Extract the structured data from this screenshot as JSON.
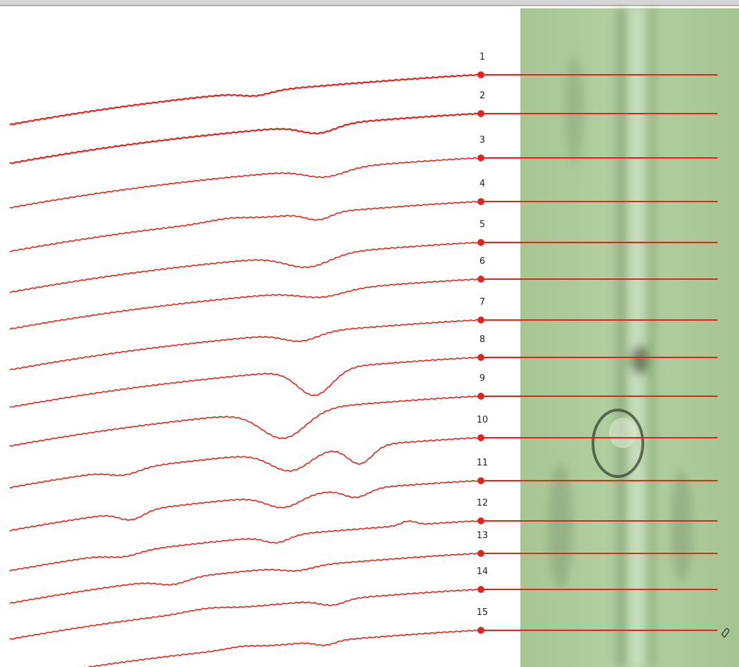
{
  "labels": [
    "1",
    "2",
    "3",
    "4",
    "5",
    "6",
    "7",
    "8",
    "9",
    "10",
    "11",
    "12",
    "13",
    "14",
    "15"
  ]
}
